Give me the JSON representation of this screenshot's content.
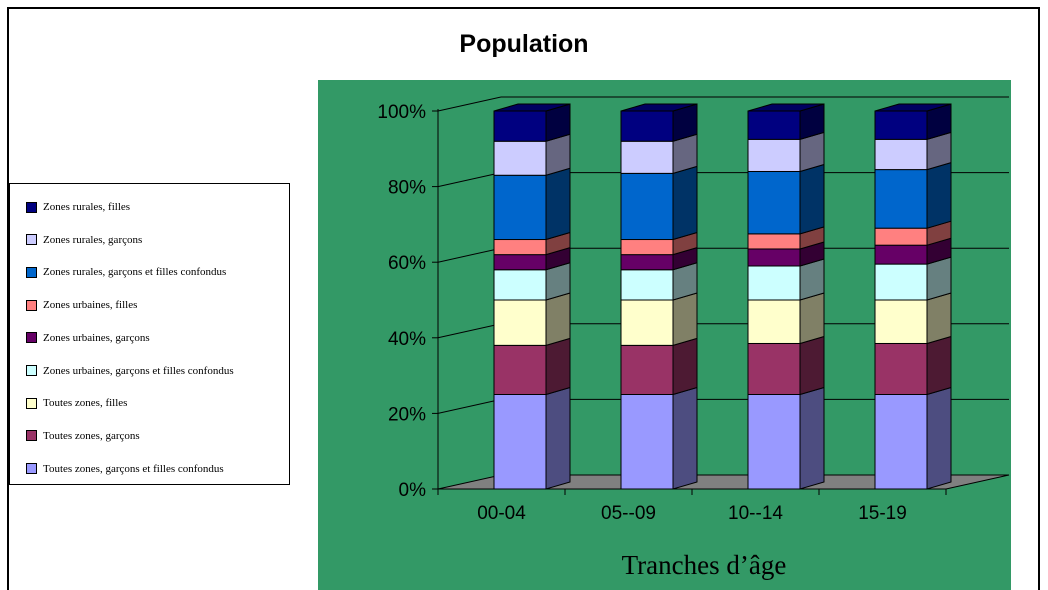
{
  "chart_data": {
    "type": "bar",
    "stacked": "percent",
    "title": "Population",
    "xlabel": "Tranches d’âge",
    "ylabel": "",
    "ylim": [
      0,
      100
    ],
    "y_ticks": [
      "0%",
      "20%",
      "40%",
      "60%",
      "80%",
      "100%"
    ],
    "categories": [
      "00-04",
      "05--09",
      "10--14",
      "15-19"
    ],
    "legend_position": "left",
    "grid": true,
    "plot_background": "#339966",
    "series": [
      {
        "name": "Toutes zones, garçons et filles confondus",
        "color": "#9999ff",
        "values": [
          25,
          25,
          25,
          25
        ]
      },
      {
        "name": "Toutes zones, garçons",
        "color": "#993366",
        "values": [
          13,
          13,
          13.5,
          13.5
        ]
      },
      {
        "name": "Toutes zones, filles",
        "color": "#ffffcc",
        "values": [
          12,
          12,
          11.5,
          11.5
        ]
      },
      {
        "name": "Zones urbaines, garçons et filles confondus",
        "color": "#ccffff",
        "values": [
          8,
          8,
          9,
          9.5
        ]
      },
      {
        "name": "Zones urbaines, garçons",
        "color": "#660066",
        "values": [
          4,
          4,
          4.5,
          5
        ]
      },
      {
        "name": "Zones urbaines, filles",
        "color": "#ff8080",
        "values": [
          4,
          4,
          4,
          4.5
        ]
      },
      {
        "name": "Zones rurales, garçons et filles confondus",
        "color": "#0066cc",
        "values": [
          17,
          17.5,
          16.5,
          15.5
        ]
      },
      {
        "name": "Zones rurales, garçons",
        "color": "#ccccff",
        "values": [
          9,
          8.5,
          8.5,
          8
        ]
      },
      {
        "name": "Zones rurales, filles",
        "color": "#000080",
        "values": [
          8,
          8,
          7.5,
          7.5
        ]
      }
    ]
  }
}
